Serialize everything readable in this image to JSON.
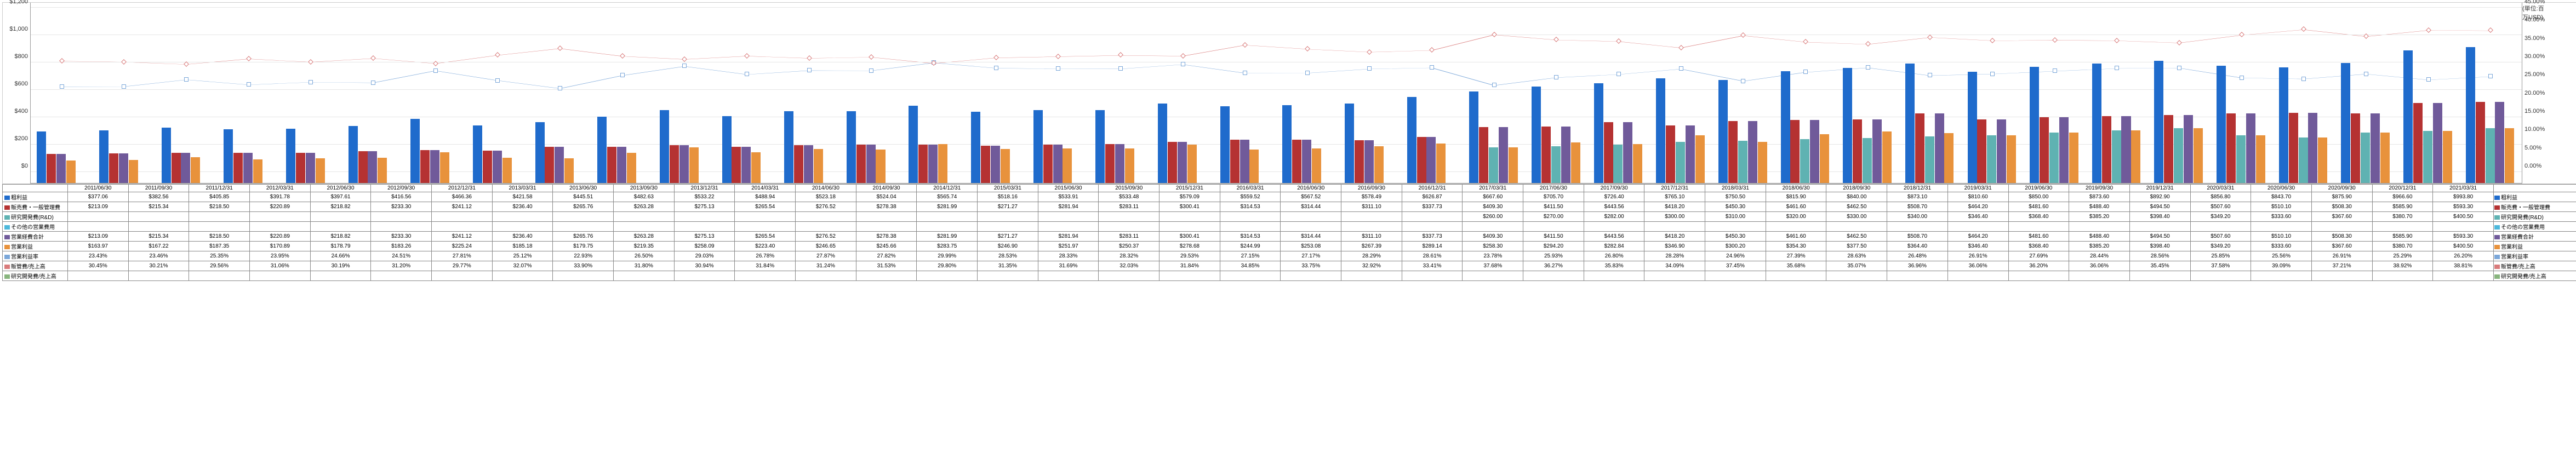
{
  "chart": {
    "background_color": "#ffffff",
    "grid_color": "#e6e6e6",
    "left_axis": {
      "min": 0,
      "max": 1200,
      "step": 200,
      "prefix": "$",
      "unit_label": "(単位:百万USD)"
    },
    "right_axis": {
      "min": 0,
      "max": 45,
      "step": 5,
      "suffix": "%"
    },
    "periods": [
      "2011/06/30",
      "2011/09/30",
      "2011/12/31",
      "2012/03/31",
      "2012/06/30",
      "2012/09/30",
      "2012/12/31",
      "2013/03/31",
      "2013/06/30",
      "2013/09/30",
      "2013/12/31",
      "2014/03/31",
      "2014/06/30",
      "2014/09/30",
      "2014/12/31",
      "2015/03/31",
      "2015/06/30",
      "2015/09/30",
      "2015/12/31",
      "2016/03/31",
      "2016/06/30",
      "2016/09/30",
      "2016/12/31",
      "2017/03/31",
      "2017/06/30",
      "2017/09/30",
      "2017/12/31",
      "2018/03/31",
      "2018/06/30",
      "2018/09/30",
      "2018/12/31",
      "2019/03/31",
      "2019/06/30",
      "2019/09/30",
      "2019/12/31",
      "2020/03/31",
      "2020/06/30",
      "2020/09/30",
      "2020/12/31",
      "2021/03/31"
    ],
    "series": [
      {
        "id": "gross",
        "type": "bar",
        "label": "粗利益",
        "color": "#1f6bcc",
        "values": [
          377.06,
          382.56,
          405.85,
          391.78,
          397.61,
          416.56,
          466.36,
          421.58,
          445.51,
          482.63,
          533.22,
          488.94,
          523.18,
          524.04,
          565.74,
          518.16,
          533.91,
          533.48,
          579.09,
          559.52,
          567.52,
          578.49,
          626.87,
          667.6,
          705.7,
          726.4,
          765.1,
          750.5,
          815.9,
          840.0,
          873.1,
          810.6,
          850.0,
          873.6,
          892.9,
          856.8,
          843.7,
          875.9,
          966.6,
          993.8
        ]
      },
      {
        "id": "sga",
        "type": "bar",
        "label": "販売費・一般管理費",
        "color": "#b53232",
        "values": [
          213.09,
          215.34,
          218.5,
          220.89,
          218.82,
          233.3,
          241.12,
          236.4,
          265.76,
          263.28,
          275.13,
          265.54,
          276.52,
          278.38,
          281.99,
          271.27,
          281.94,
          283.11,
          300.41,
          314.53,
          314.44,
          311.1,
          337.73,
          409.3,
          411.5,
          443.56,
          418.2,
          450.3,
          461.6,
          462.5,
          508.7,
          464.2,
          481.6,
          488.4,
          494.5,
          507.6,
          510.1,
          508.3,
          585.9,
          593.3
        ]
      },
      {
        "id": "rnd",
        "type": "bar",
        "label": "研究開発費(R&D)",
        "color": "#5fb2b2",
        "values": [
          null,
          null,
          null,
          null,
          null,
          null,
          null,
          null,
          null,
          null,
          null,
          null,
          null,
          null,
          null,
          null,
          null,
          null,
          null,
          null,
          null,
          null,
          null,
          260,
          270,
          282,
          300,
          310,
          320,
          330,
          340,
          346.4,
          368.4,
          385.2,
          398.4,
          349.2,
          333.6,
          367.6,
          380.7,
          400.5
        ]
      },
      {
        "id": "opexp",
        "type": "bar",
        "label": "営業経費合計",
        "color": "#705a9a",
        "values": [
          213.09,
          215.34,
          218.5,
          220.89,
          218.82,
          233.3,
          241.12,
          236.4,
          265.76,
          263.28,
          275.13,
          265.54,
          276.52,
          278.38,
          281.99,
          271.27,
          281.94,
          283.11,
          300.41,
          314.53,
          314.44,
          311.1,
          337.73,
          409.3,
          411.5,
          443.56,
          418.2,
          450.3,
          461.6,
          462.5,
          508.7,
          464.2,
          481.6,
          488.4,
          494.5,
          507.6,
          510.1,
          508.3,
          585.9,
          593.3
        ]
      },
      {
        "id": "opinc",
        "type": "bar",
        "label": "営業利益",
        "color": "#e8923c",
        "values": [
          163.97,
          167.22,
          187.35,
          170.89,
          178.79,
          183.26,
          225.24,
          185.18,
          179.75,
          219.35,
          258.09,
          223.4,
          246.65,
          245.66,
          283.75,
          246.9,
          251.97,
          250.37,
          278.68,
          244.99,
          253.08,
          267.39,
          289.14,
          258.3,
          294.2,
          282.84,
          346.9,
          300.2,
          354.3,
          377.5,
          364.4,
          346.4,
          368.4,
          385.2,
          398.4,
          349.2,
          333.6,
          367.6,
          380.7,
          400.5
        ]
      },
      {
        "id": "otherexp",
        "type": "bar",
        "label": "その他の営業費用",
        "color": "#4db8db",
        "values": [
          null,
          null,
          null,
          null,
          null,
          null,
          null,
          null,
          null,
          null,
          null,
          null,
          null,
          null,
          null,
          null,
          null,
          null,
          null,
          null,
          null,
          null,
          null,
          null,
          null,
          null,
          null,
          null,
          null,
          null,
          null,
          null,
          null,
          null,
          null,
          null,
          null,
          null,
          null,
          null
        ]
      },
      {
        "id": "opmargin",
        "type": "line",
        "label": "営業利益率",
        "color": "#7ba7d9",
        "marker": "square",
        "values": [
          23.43,
          23.46,
          25.35,
          23.95,
          24.66,
          24.51,
          27.81,
          25.12,
          22.93,
          26.5,
          29.03,
          26.78,
          27.87,
          27.82,
          29.99,
          28.53,
          28.33,
          28.32,
          29.53,
          27.15,
          27.17,
          28.29,
          28.61,
          23.78,
          25.93,
          26.8,
          28.28,
          24.96,
          27.39,
          28.63,
          26.48,
          26.91,
          27.69,
          28.44,
          28.56,
          25.85,
          25.56,
          26.91,
          25.29,
          26.2
        ]
      },
      {
        "id": "sga_rev",
        "type": "line",
        "label": "販管費/売上高",
        "color": "#d97b7b",
        "marker": "diamond",
        "values": [
          30.45,
          30.21,
          29.56,
          31.06,
          30.19,
          31.2,
          29.77,
          32.07,
          33.9,
          31.8,
          30.94,
          31.84,
          31.24,
          31.53,
          29.8,
          31.35,
          31.69,
          32.03,
          31.84,
          34.85,
          33.75,
          32.92,
          33.41,
          37.68,
          36.27,
          35.83,
          34.09,
          37.45,
          35.68,
          35.07,
          36.96,
          36.06,
          36.2,
          36.06,
          35.45,
          37.58,
          39.09,
          37.21,
          38.92,
          38.81
        ]
      },
      {
        "id": "rnd_rev",
        "type": "line",
        "label": "研究開発費/売上高",
        "color": "#88b57e",
        "marker": "triangle",
        "values": [
          null,
          null,
          null,
          null,
          null,
          null,
          null,
          null,
          null,
          null,
          null,
          null,
          null,
          null,
          null,
          null,
          null,
          null,
          null,
          null,
          null,
          null,
          null,
          null,
          null,
          null,
          null,
          null,
          null,
          null,
          null,
          null,
          null,
          null,
          null,
          null,
          null,
          null,
          null,
          null
        ]
      }
    ],
    "line_width": 1.5,
    "bar_gap_pct": 8
  },
  "table": {
    "row_labels": [
      "粗利益",
      "販売費・一般管理費",
      "研究開発費(R&D)",
      "その他の営業費用",
      "営業経費合計",
      "営業利益",
      "営業利益率",
      "販管費/売上高",
      "研究開発費/売上高"
    ]
  },
  "legend_right": [
    "粗利益",
    "販売費・一般管理費",
    "研究開発費(R&D)",
    "その他の営業費用",
    "営業経費合計",
    "営業利益",
    "営業利益率",
    "販管費/売上高",
    "研究開発費/売上高"
  ],
  "colors_right": [
    "#1f6bcc",
    "#b53232",
    "#5fb2b2",
    "#4db8db",
    "#705a9a",
    "#e8923c",
    "#7ba7d9",
    "#d97b7b",
    "#88b57e"
  ]
}
